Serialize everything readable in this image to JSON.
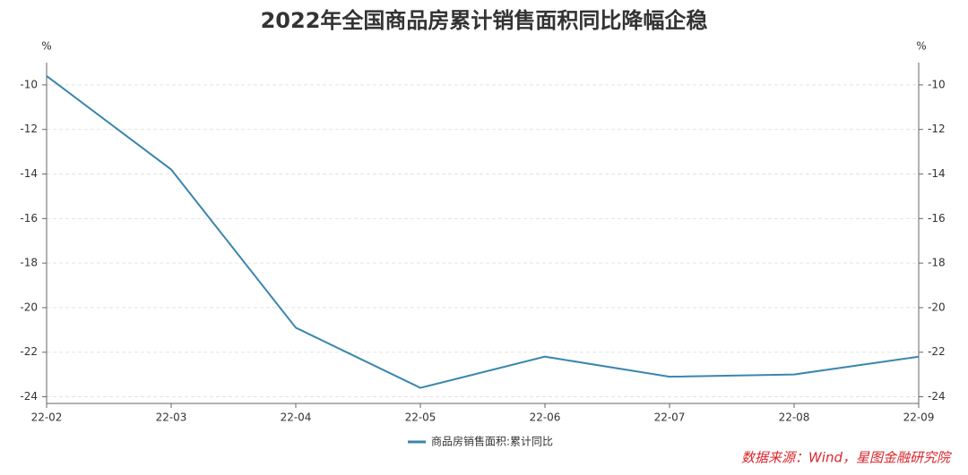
{
  "chart_data": {
    "type": "line",
    "title": "2022年全国商品房累计销售面积同比降幅企稳",
    "categories": [
      "22-02",
      "22-03",
      "22-04",
      "22-05",
      "22-06",
      "22-07",
      "22-08",
      "22-09"
    ],
    "series": [
      {
        "name": "商品房销售面积:累计同比",
        "color": "#3a86ae",
        "values": [
          -9.6,
          -13.8,
          -20.9,
          -23.6,
          -22.2,
          -23.1,
          -23.0,
          -22.2
        ]
      }
    ],
    "ylabel": "%",
    "y2label": "%",
    "ylim": [
      -24.3,
      -9
    ],
    "yticks": [
      -10,
      -12,
      -14,
      -16,
      -18,
      -20,
      -22,
      -24
    ],
    "y2lim": [
      -24.3,
      -9
    ],
    "y2ticks": [
      -10,
      -12,
      -14,
      -16,
      -18,
      -20,
      -22,
      -24
    ],
    "grid": true,
    "legend": "bottom",
    "source": "数据来源：Wind，星图金融研究院"
  }
}
